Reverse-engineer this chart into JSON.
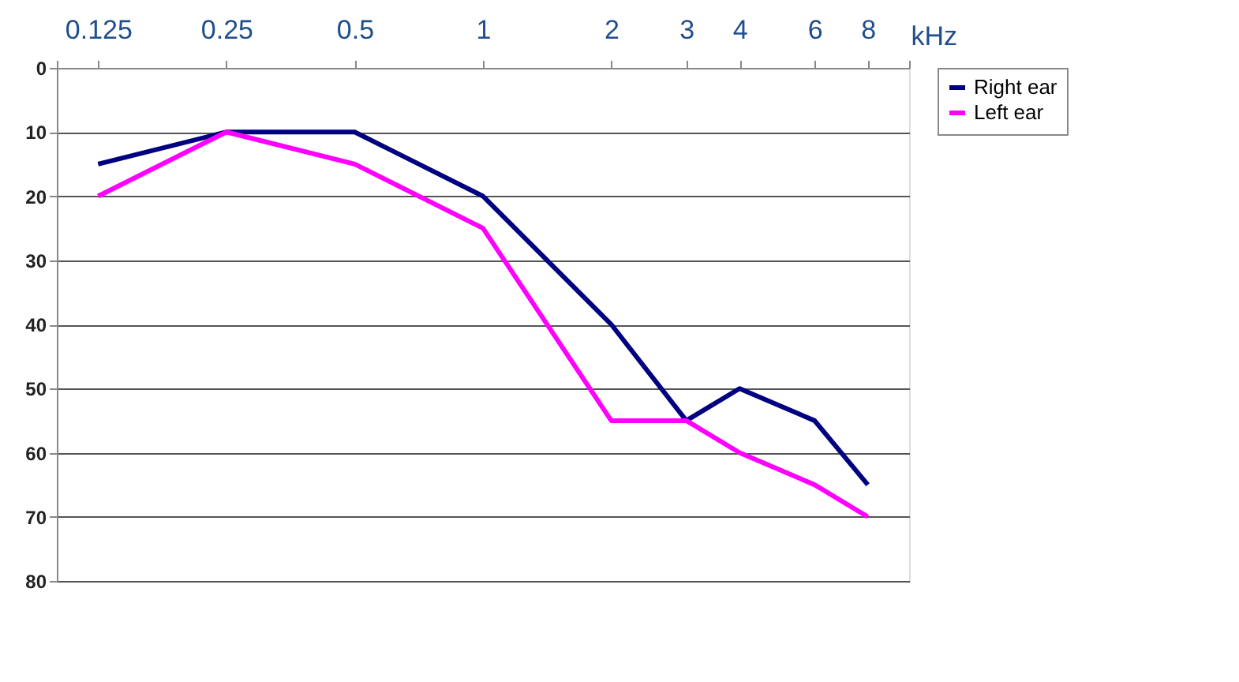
{
  "chart_data": {
    "type": "line",
    "xlabel": "kHz",
    "x": [
      0.125,
      0.25,
      0.5,
      1,
      2,
      3,
      4,
      6,
      8
    ],
    "series": [
      {
        "name": "Right ear",
        "color": "#000080",
        "values": [
          15,
          10,
          10,
          20,
          40,
          55,
          50,
          55,
          65
        ]
      },
      {
        "name": "Left ear",
        "color": "#ff00ff",
        "values": [
          20,
          10,
          15,
          25,
          55,
          55,
          60,
          65,
          70
        ]
      }
    ],
    "log": "x",
    "xlim": [
      0.1,
      10
    ],
    "xticks": [
      {
        "value": 0.1,
        "label": null
      },
      0.125,
      0.25,
      0.5,
      1,
      2,
      3,
      4,
      6,
      8,
      {
        "value": 10,
        "label": null
      }
    ],
    "ylim": [
      80,
      0
    ],
    "yticks": [
      0,
      10,
      20,
      30,
      40,
      50,
      60,
      70,
      80
    ],
    "grid": "y",
    "legend": "right",
    "marker": "none",
    "line_style": "solid"
  }
}
